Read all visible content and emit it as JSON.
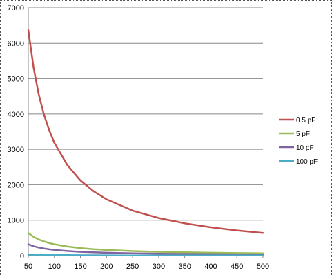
{
  "chart_data": {
    "type": "line",
    "title": "",
    "xlabel": "",
    "ylabel": "",
    "xlim": [
      50,
      500
    ],
    "ylim": [
      0,
      7000
    ],
    "x_ticks": [
      "50",
      "100",
      "150",
      "200",
      "250",
      "300",
      "350",
      "400",
      "450",
      "500"
    ],
    "y_ticks": [
      "0",
      "1000",
      "2000",
      "3000",
      "4000",
      "5000",
      "6000",
      "7000"
    ],
    "grid": "horizontal",
    "legend_position": "right",
    "x": [
      50,
      60,
      70,
      80,
      90,
      100,
      125,
      150,
      175,
      200,
      250,
      300,
      350,
      400,
      450,
      500
    ],
    "series": [
      {
        "name": "0.5 pF",
        "color": "#c0504d",
        "values": [
          6370,
          5310,
          4550,
          3980,
          3540,
          3180,
          2550,
          2120,
          1820,
          1590,
          1270,
          1060,
          910,
          800,
          710,
          640
        ]
      },
      {
        "name": "5 pF",
        "color": "#9bbb59",
        "values": [
          640,
          530,
          455,
          400,
          355,
          320,
          255,
          212,
          182,
          159,
          127,
          106,
          91,
          80,
          71,
          64
        ]
      },
      {
        "name": "10 pF",
        "color": "#8064a2",
        "values": [
          320,
          265,
          228,
          200,
          177,
          160,
          128,
          106,
          91,
          80,
          64,
          53,
          46,
          40,
          35,
          32
        ]
      },
      {
        "name": "100 pF",
        "color": "#4bacc6",
        "values": [
          32,
          27,
          23,
          20,
          18,
          16,
          13,
          11,
          9,
          8,
          6,
          5,
          5,
          4,
          4,
          3
        ]
      }
    ]
  }
}
